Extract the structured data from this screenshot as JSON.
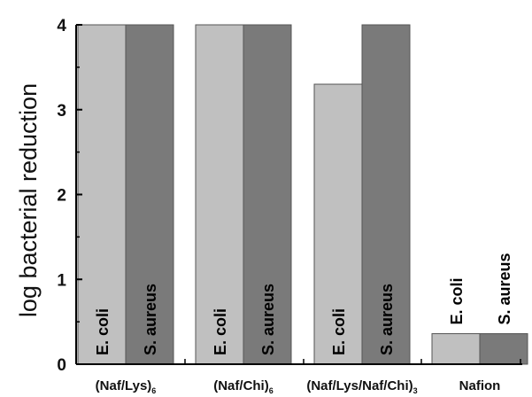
{
  "chart_data": {
    "type": "bar",
    "categories": [
      {
        "main": "(Naf/Lys)",
        "sub": "6"
      },
      {
        "main": "(Naf/Chi)",
        "sub": "6"
      },
      {
        "main": "(Naf/Lys/Naf/Chi)",
        "sub": "3"
      },
      {
        "main": "Nafion",
        "sub": ""
      }
    ],
    "series": [
      {
        "name": "E. coli",
        "color": "#c0c0c0",
        "values": [
          4.0,
          4.0,
          3.3,
          0.36
        ]
      },
      {
        "name": "S. aureus",
        "color": "#7a7a7a",
        "values": [
          4.0,
          4.0,
          4.0,
          0.36
        ]
      }
    ],
    "ylabel": "log bacterial reduction",
    "ylim": [
      0,
      4
    ],
    "yticks": [
      0,
      1,
      2,
      3,
      4
    ],
    "grid": false,
    "legend": "none (series names written on bars)"
  }
}
